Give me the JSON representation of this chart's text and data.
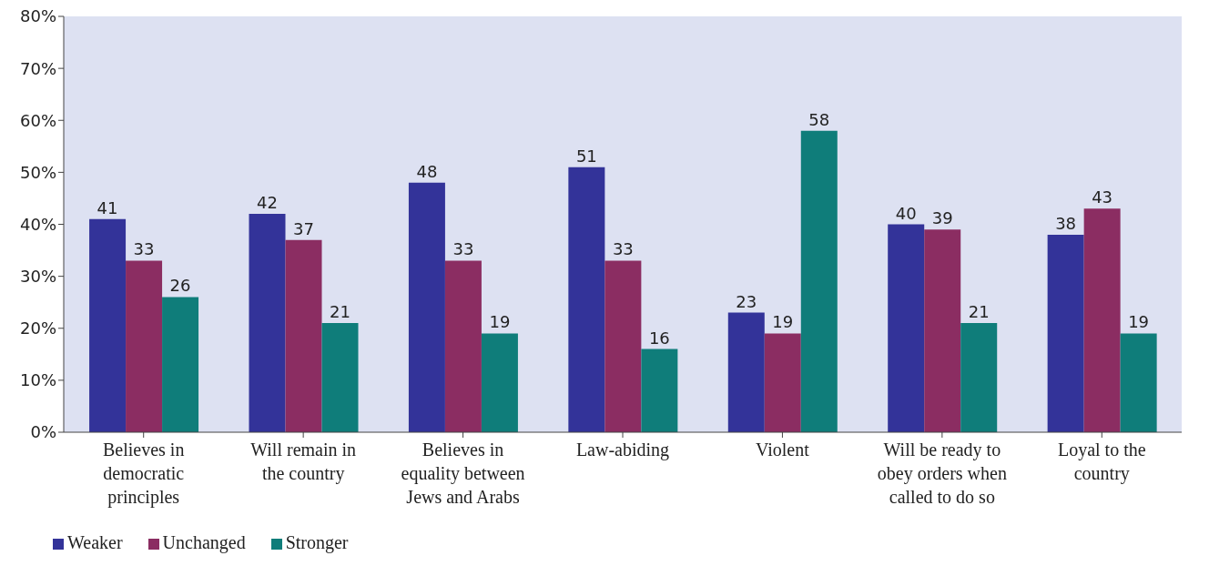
{
  "chart_data": {
    "type": "bar",
    "categories": [
      "Believes in democratic principles",
      "Will remain in the country",
      "Believes in equality between Jews and Arabs",
      "Law-abiding",
      "Violent",
      "Will be ready to obey orders when called to do so",
      "Loyal to the country"
    ],
    "series": [
      {
        "name": "Weaker",
        "color": "#333399",
        "values": [
          41,
          42,
          48,
          51,
          23,
          40,
          38
        ]
      },
      {
        "name": "Unchanged",
        "color": "#8b2d62",
        "values": [
          33,
          37,
          33,
          33,
          19,
          39,
          43
        ]
      },
      {
        "name": "Stronger",
        "color": "#0f7d7a",
        "values": [
          26,
          21,
          19,
          16,
          58,
          21,
          19
        ]
      }
    ],
    "ylim": [
      0,
      80
    ],
    "yticks": [
      {
        "value": 0,
        "label": "0%"
      },
      {
        "value": 10,
        "label": "10%"
      },
      {
        "value": 20,
        "label": "20%"
      },
      {
        "value": 30,
        "label": "30%"
      },
      {
        "value": 40,
        "label": "40%"
      },
      {
        "value": 50,
        "label": "50%"
      },
      {
        "value": 60,
        "label": "60%"
      },
      {
        "value": 70,
        "label": "70%"
      },
      {
        "value": 80,
        "label": "80%"
      }
    ],
    "grid": false,
    "legend": "bottom left",
    "data_labels": true
  }
}
